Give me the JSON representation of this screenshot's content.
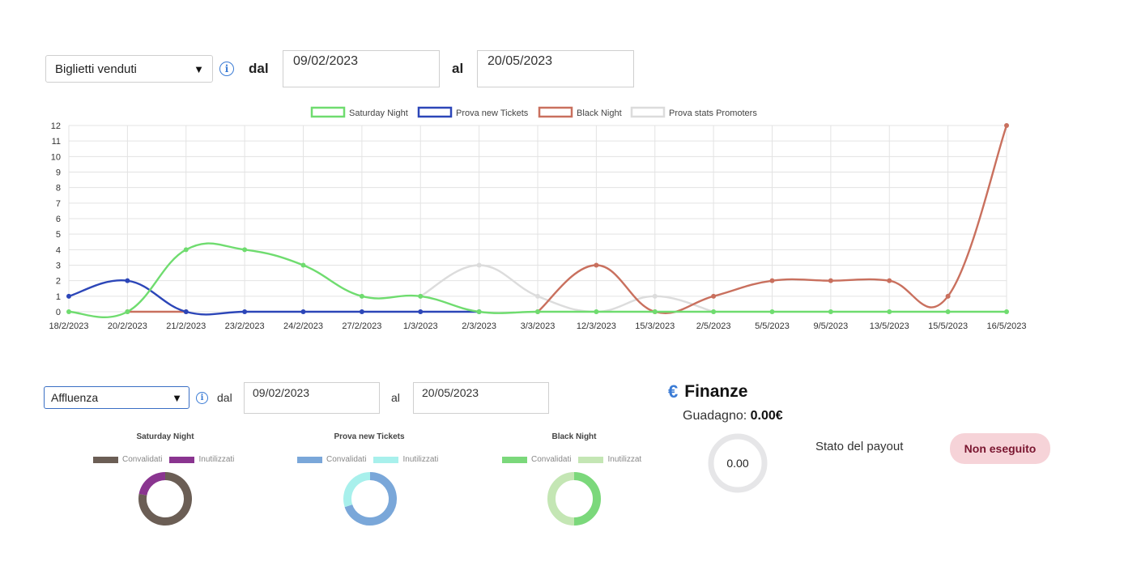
{
  "top_filter": {
    "select_value": "Biglietti venduti",
    "from_label": "dal",
    "from_value": "09/02/2023",
    "to_label": "al",
    "to_value": "20/05/2023"
  },
  "line_chart": {
    "chart_data": {
      "type": "line",
      "x": [
        "18/2/2023",
        "20/2/2023",
        "21/2/2023",
        "23/2/2023",
        "24/2/2023",
        "27/2/2023",
        "1/3/2023",
        "2/3/2023",
        "3/3/2023",
        "12/3/2023",
        "15/3/2023",
        "2/5/2023",
        "5/5/2023",
        "9/5/2023",
        "13/5/2023",
        "15/5/2023",
        "16/5/2023"
      ],
      "ylim": [
        0,
        12
      ],
      "yticks": [
        0,
        1,
        2,
        3,
        4,
        5,
        6,
        7,
        8,
        9,
        10,
        11,
        12
      ],
      "legend_position": "top",
      "grid": true,
      "series": [
        {
          "name": "Saturday Night",
          "color": "#6fdc6f",
          "values": [
            0,
            0,
            4,
            4,
            3,
            1,
            1,
            0,
            0,
            0,
            0,
            0,
            0,
            0,
            0,
            0,
            0
          ]
        },
        {
          "name": "Prova new Tickets",
          "color": "#2c46b8",
          "values": [
            1,
            2,
            0,
            0,
            0,
            0,
            0,
            0,
            null,
            null,
            null,
            null,
            null,
            null,
            null,
            null,
            null
          ]
        },
        {
          "name": "Black Night",
          "color": "#c9705e",
          "values": [
            null,
            0,
            0,
            null,
            null,
            null,
            null,
            null,
            0,
            3,
            0,
            1,
            2,
            2,
            2,
            1,
            12
          ]
        },
        {
          "name": "Prova stats Promoters",
          "color": "#dcdcdc",
          "values": [
            null,
            null,
            null,
            null,
            null,
            null,
            1,
            3,
            1,
            0,
            1,
            0,
            null,
            null,
            null,
            null,
            null
          ]
        }
      ]
    }
  },
  "bottom_filter": {
    "select_value": "Affluenza",
    "from_label": "dal",
    "from_value": "09/02/2023",
    "to_label": "al",
    "to_value": "20/05/2023"
  },
  "donuts": [
    {
      "title": "Saturday Night",
      "legend": [
        "Convalidati",
        "Inutilizzati"
      ],
      "chart_data": {
        "type": "pie",
        "labels": [
          "Convalidati",
          "Inutilizzati"
        ],
        "values": [
          78,
          22
        ],
        "colors": [
          "#6b5e55",
          "#8a3590"
        ]
      }
    },
    {
      "title": "Prova new Tickets",
      "legend": [
        "Convalidati",
        "Inutilizzati"
      ],
      "chart_data": {
        "type": "pie",
        "labels": [
          "Convalidati",
          "Inutilizzati"
        ],
        "values": [
          70,
          30
        ],
        "colors": [
          "#7aa7d9",
          "#a8f0ec"
        ]
      }
    },
    {
      "title": "Black Night",
      "legend": [
        "Convalidati",
        "Inutilizzat"
      ],
      "chart_data": {
        "type": "pie",
        "labels": [
          "Convalidati",
          "Inutilizzat"
        ],
        "values": [
          50,
          50
        ],
        "colors": [
          "#7bd87b",
          "#c4e6b4"
        ]
      }
    }
  ],
  "finance": {
    "icon": "euro-icon",
    "title": "Finanze",
    "gain_label": "Guadagno:",
    "gain_value": "0.00€",
    "ring_value": "0.00",
    "payout_label": "Stato del payout",
    "payout_status": "Non eseguito"
  }
}
